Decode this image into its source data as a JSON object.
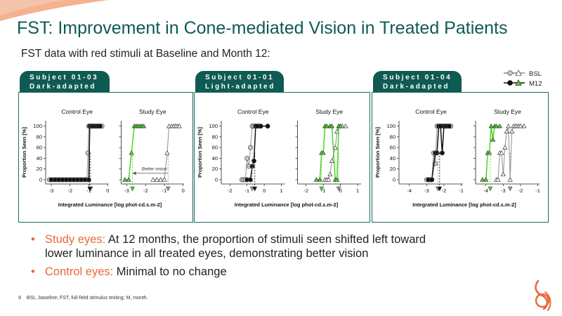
{
  "slide": {
    "title": "FST: Improvement in Cone-mediated Vision in Treated Patients",
    "subtitle": "FST data with red stimuli at Baseline and Month 12:",
    "page_number": "9",
    "footnote": "BSL, baseline; FST, full-field stimulus testing; M, month."
  },
  "legend": {
    "bsl": "BSL",
    "m12": "M12"
  },
  "colors": {
    "teal": "#0f5a52",
    "orange": "#e8683a",
    "green": "#4cd624",
    "gray": "#9a9a9a",
    "dark": "#111111"
  },
  "chart_data": [
    {
      "type": "line",
      "subject": "Subject 01-03",
      "condition": "Dark-adapted",
      "xlabel": "Integrated Luminance [log phot-cd.s.m-2]",
      "ylabel": "Proportion Seen [%]",
      "yticks": [
        0,
        20,
        40,
        60,
        80,
        100
      ],
      "ylim": [
        -8,
        110
      ],
      "panels": [
        {
          "name": "Control Eye",
          "xlim": [
            -3.3,
            0.05
          ],
          "xticks": [
            -3,
            -2,
            -1,
            0
          ],
          "series": [
            {
              "name": "BSL",
              "x": [
                -3.1,
                -2.9,
                -2.7,
                -2.5,
                -2.3,
                -2.1,
                -1.9,
                -1.7,
                -1.5,
                -1.3,
                -1.1,
                -1.05,
                -1.0,
                -0.95,
                -0.9,
                -0.8,
                -0.7,
                -0.6,
                -0.5,
                -0.4,
                -0.3
              ],
              "y": [
                0,
                0,
                0,
                0,
                0,
                0,
                0,
                0,
                0,
                0,
                0,
                50,
                100,
                100,
                100,
                100,
                100,
                100,
                100,
                100,
                100
              ]
            },
            {
              "name": "M12",
              "x": [
                -3.0,
                -2.8,
                -2.6,
                -2.4,
                -2.2,
                -2.0,
                -1.8,
                -1.6,
                -1.4,
                -1.2,
                -1.0,
                -0.95,
                -0.9,
                -0.85,
                -0.8,
                -0.7,
                -0.6,
                -0.5,
                -0.4
              ],
              "y": [
                0,
                0,
                0,
                0,
                0,
                0,
                0,
                0,
                0,
                0,
                0,
                100,
                100,
                100,
                100,
                100,
                100,
                100,
                100
              ]
            }
          ],
          "threshold_bsl": -0.9,
          "threshold_m12": -0.95
        },
        {
          "name": "Study Eye",
          "xlim": [
            -3.3,
            0.05
          ],
          "xticks": [
            -3,
            -2,
            -1,
            0
          ],
          "series": [
            {
              "name": "BSL",
              "x": [
                -1.6,
                -1.4,
                -1.2,
                -1.0,
                -0.85,
                -0.75,
                -0.6,
                -0.5,
                -0.4,
                -0.3,
                -0.2
              ],
              "y": [
                0,
                0,
                0,
                0,
                50,
                100,
                100,
                100,
                100,
                100,
                100
              ]
            },
            {
              "name": "M12",
              "x": [
                -3.1,
                -2.9,
                -2.75,
                -2.6,
                -2.5,
                -2.4,
                -2.3,
                -2.2,
                -2.1
              ],
              "y": [
                0,
                0,
                50,
                100,
                100,
                100,
                100,
                100,
                100
              ]
            }
          ],
          "threshold_bsl": -0.8,
          "threshold_m12": -2.7,
          "annotation": "Better vision"
        }
      ]
    },
    {
      "type": "line",
      "subject": "Subject 01-01",
      "condition": "Light-adapted",
      "xlabel": "Integrated Luminance [log phot-cd.s.m-2]",
      "ylabel": "Proportion Seen [%]",
      "yticks": [
        0,
        20,
        40,
        60,
        80,
        100
      ],
      "ylim": [
        -8,
        110
      ],
      "panels": [
        {
          "name": "Control Eye",
          "xlim": [
            -2.5,
            1.2
          ],
          "xticks": [
            -2,
            -1,
            0,
            1
          ],
          "series": [
            {
              "name": "BSL",
              "x": [
                -1.3,
                -1.2,
                -1.1,
                -1.0,
                -0.9,
                -0.8,
                -0.7,
                -0.6,
                -0.5,
                -0.4,
                -0.3
              ],
              "y": [
                0,
                0,
                0,
                40,
                25,
                60,
                100,
                100,
                100,
                100,
                100
              ]
            },
            {
              "name": "M12",
              "x": [
                -1.0,
                -0.8,
                -0.7,
                -0.6,
                -0.5,
                -0.4,
                -0.2,
                0.2
              ],
              "y": [
                0,
                0,
                25,
                35,
                100,
                100,
                100,
                100
              ]
            }
          ],
          "threshold_bsl": -0.7,
          "threshold_m12": -0.55
        },
        {
          "name": "Study Eye",
          "xlim": [
            -2.5,
            1.2
          ],
          "xticks": [
            -2,
            -1,
            0,
            1
          ],
          "series": [
            {
              "name": "BSL",
              "x": [
                -0.9,
                -0.8,
                -0.7,
                -0.6,
                -0.5,
                -0.3,
                -0.2,
                -0.1,
                0.0,
                0.1,
                0.3
              ],
              "y": [
                0,
                0,
                0,
                10,
                35,
                60,
                90,
                100,
                100,
                100,
                100
              ]
            },
            {
              "name": "M12",
              "x": [
                -1.4,
                -1.2,
                -1.1,
                -1.0,
                -0.9,
                -0.8,
                -0.6,
                -0.5,
                -0.3,
                -0.2,
                -0.1,
                0.0
              ],
              "y": [
                0,
                0,
                50,
                50,
                100,
                100,
                100,
                100,
                0,
                0,
                100,
                100
              ]
            }
          ],
          "threshold_bsl": -0.1,
          "threshold_m12": -1.1
        }
      ]
    },
    {
      "type": "line",
      "subject": "Subject 01-04",
      "condition": "Dark-adapted",
      "xlabel": "Integrated Luminance [log phot-cd.s.m-2]",
      "ylabel": "Proportion Seen [%]",
      "yticks": [
        0,
        20,
        40,
        60,
        80,
        100
      ],
      "ylim": [
        -8,
        110
      ],
      "panels": [
        {
          "name": "Control Eye",
          "xlim": [
            -4.6,
            -0.9
          ],
          "xticks": [
            -4,
            -3,
            -2,
            -1
          ],
          "series": [
            {
              "name": "BSL",
              "x": [
                -3.0,
                -2.9,
                -2.8,
                -2.7,
                -2.6,
                -2.5,
                -2.4,
                -2.3,
                -2.2,
                -2.1,
                -2.0,
                -1.9,
                -1.8,
                -1.7,
                -1.6
              ],
              "y": [
                0,
                0,
                0,
                0,
                50,
                30,
                100,
                100,
                100,
                100,
                100,
                100,
                100,
                100,
                100
              ]
            },
            {
              "name": "M12",
              "x": [
                -2.9,
                -2.7,
                -2.5,
                -2.4,
                -2.3,
                -2.2,
                -2.1,
                -2.0,
                -1.9,
                -1.8,
                -1.7
              ],
              "y": [
                0,
                0,
                50,
                50,
                100,
                100,
                50,
                100,
                100,
                100,
                100
              ]
            }
          ],
          "threshold_bsl": -2.35,
          "threshold_m12": -2.25
        },
        {
          "name": "Study Eye",
          "xlim": [
            -4.6,
            -0.9
          ],
          "xticks": [
            -4,
            -3,
            -2,
            -1
          ],
          "series": [
            {
              "name": "BSL",
              "x": [
                -3.4,
                -3.3,
                -3.2,
                -3.1,
                -3.0,
                -2.9,
                -2.8,
                -2.7,
                -2.6,
                -2.5,
                -2.4,
                -2.3,
                -2.2,
                -2.1,
                -2.0,
                -1.8
              ],
              "y": [
                0,
                0,
                50,
                50,
                10,
                60,
                90,
                100,
                0,
                90,
                100,
                100,
                100,
                100,
                100,
                100
              ]
            },
            {
              "name": "M12",
              "x": [
                -4.2,
                -4.0,
                -3.9,
                -3.8,
                -3.7,
                -3.6,
                -3.5,
                -3.4,
                -3.2
              ],
              "y": [
                0,
                0,
                50,
                50,
                100,
                75,
                100,
                100,
                100
              ]
            }
          ],
          "threshold_bsl": -2.6,
          "threshold_m12": -3.75
        }
      ]
    }
  ],
  "bullets": [
    {
      "label": "Study eyes:",
      "text": " At 12 months, the proportion of stimuli seen shifted left toward",
      "text2": "lower luminance in all treated eyes, demonstrating better vision"
    },
    {
      "label": "Control eyes:",
      "text": " Minimal to no change"
    }
  ]
}
